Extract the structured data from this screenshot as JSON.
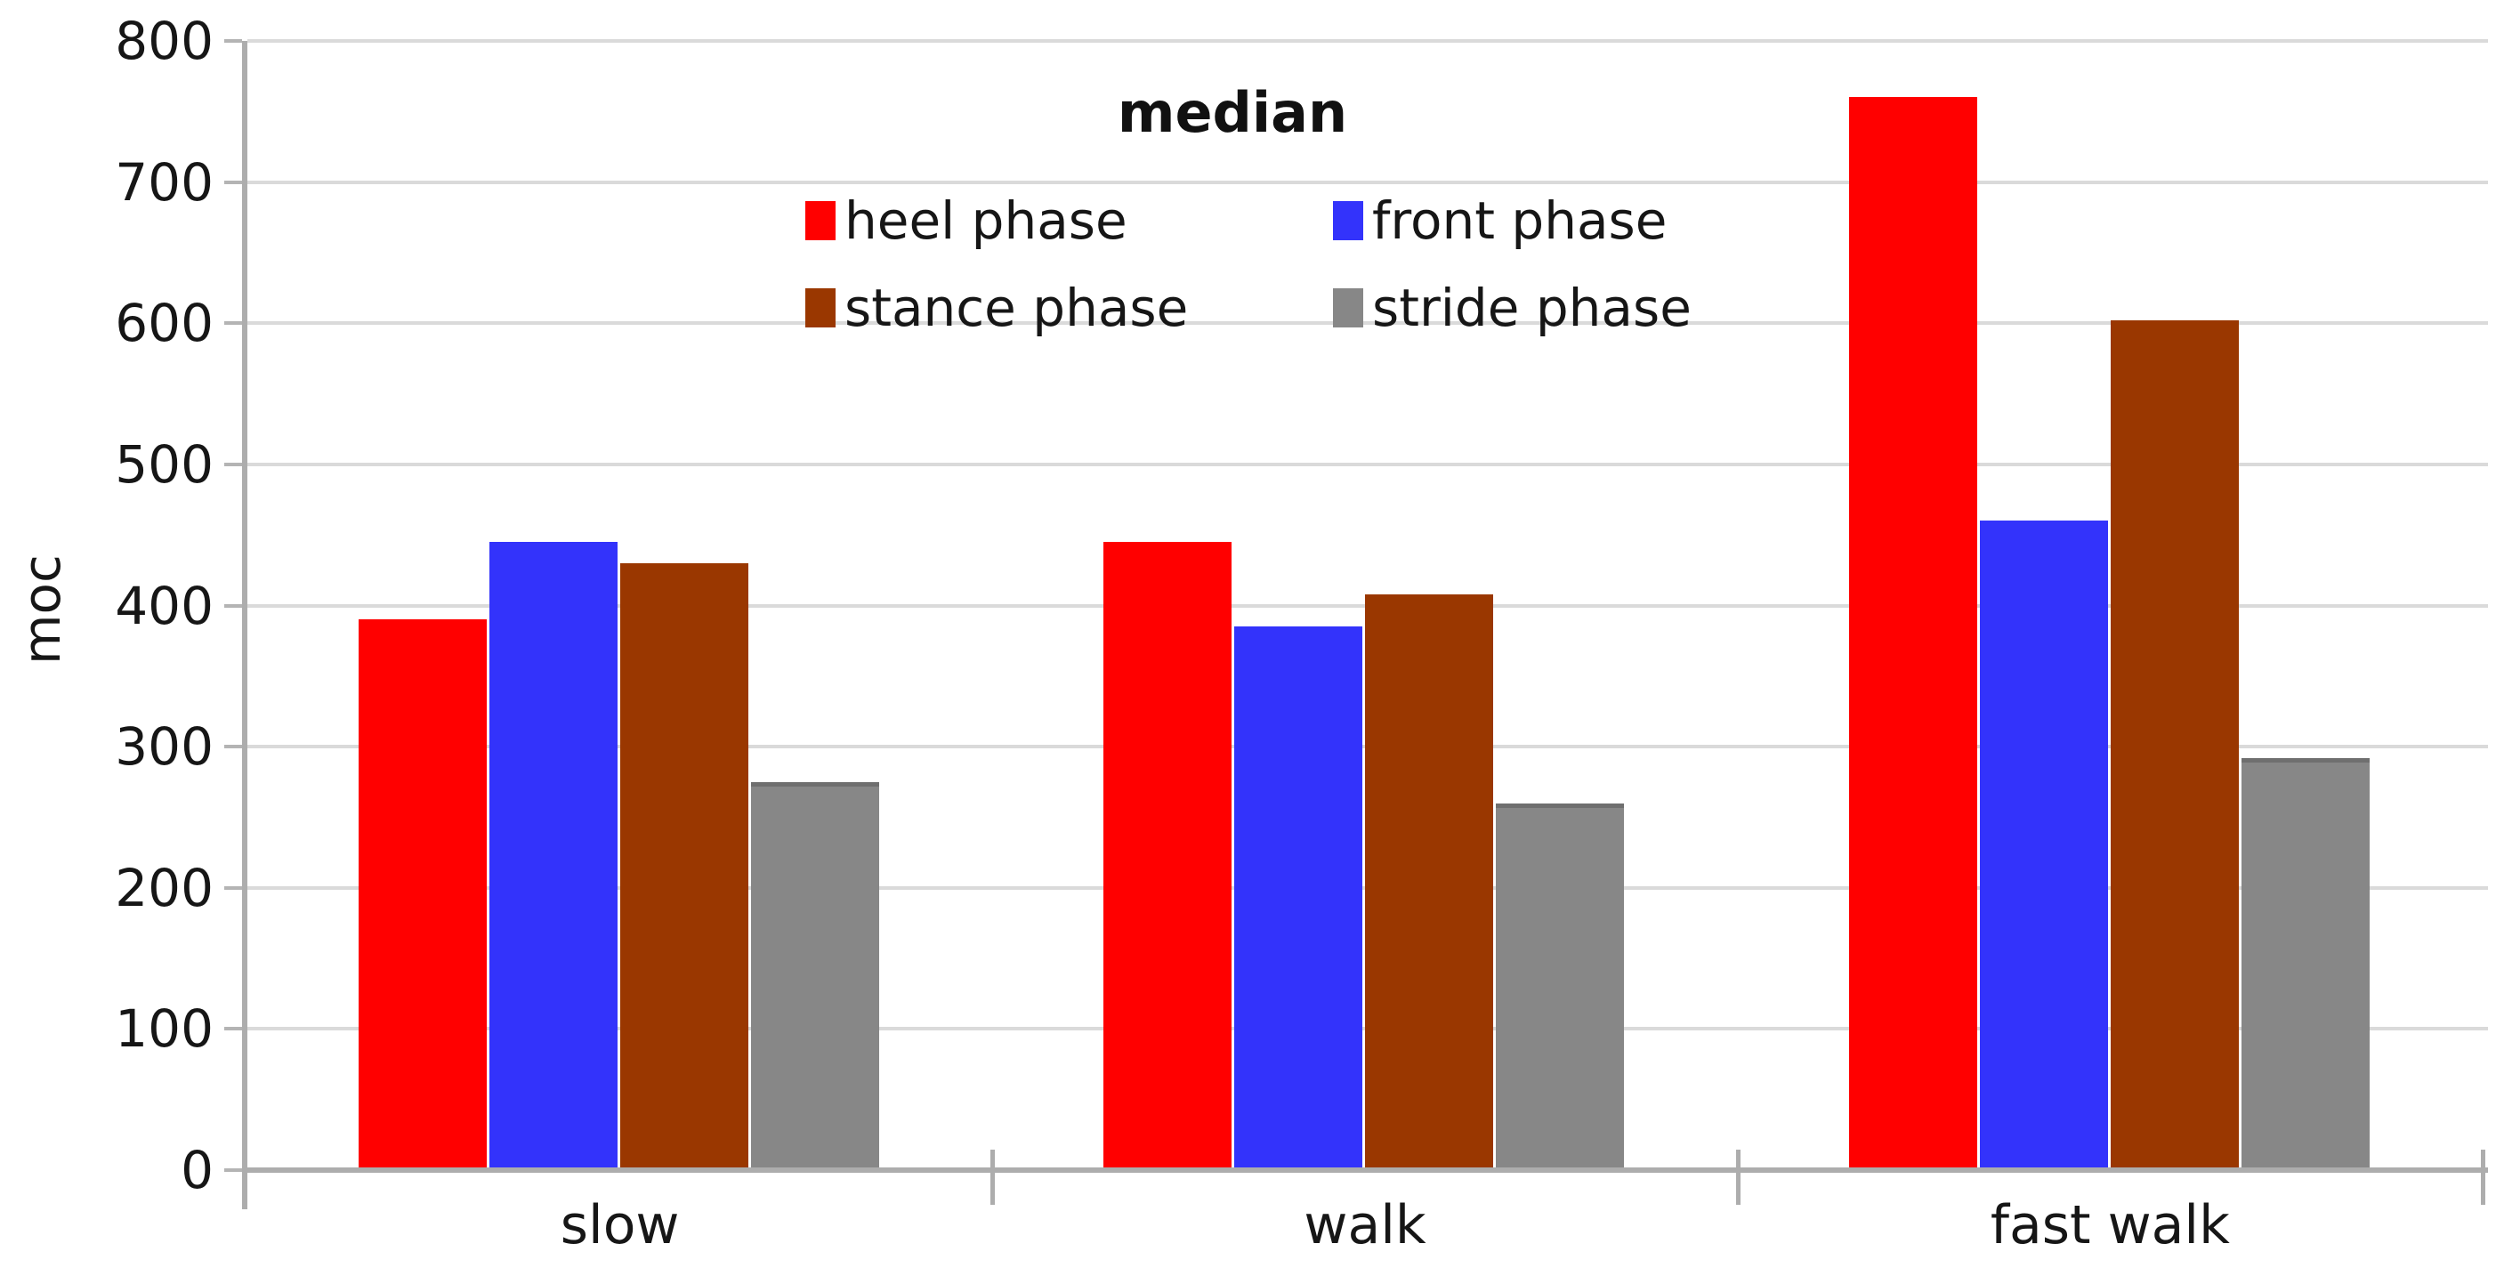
{
  "chart_data": {
    "type": "bar",
    "title": "median",
    "ylabel": "moc",
    "xlabel": "",
    "categories": [
      "slow",
      "walk",
      "fast walk"
    ],
    "series": [
      {
        "name": "heel phase",
        "color": "#ff0000",
        "values": [
          390,
          445,
          760
        ]
      },
      {
        "name": "front phase",
        "color": "#3333fb",
        "values": [
          445,
          385,
          460
        ]
      },
      {
        "name": "stance phase",
        "color": "#9a3700",
        "values": [
          430,
          408,
          602
        ]
      },
      {
        "name": "stride phase",
        "color": "#878787",
        "values": [
          275,
          260,
          292
        ]
      }
    ],
    "ylim": [
      0,
      800
    ],
    "ytick_interval": 100,
    "yticks": [
      0,
      100,
      200,
      300,
      400,
      500,
      600,
      700,
      800
    ],
    "grid": true,
    "legend_position": "top-center",
    "legend_columns": 2,
    "style": {
      "grid_color": "#dadada",
      "axis_color": "#adadad",
      "text_color": "#161616"
    }
  }
}
